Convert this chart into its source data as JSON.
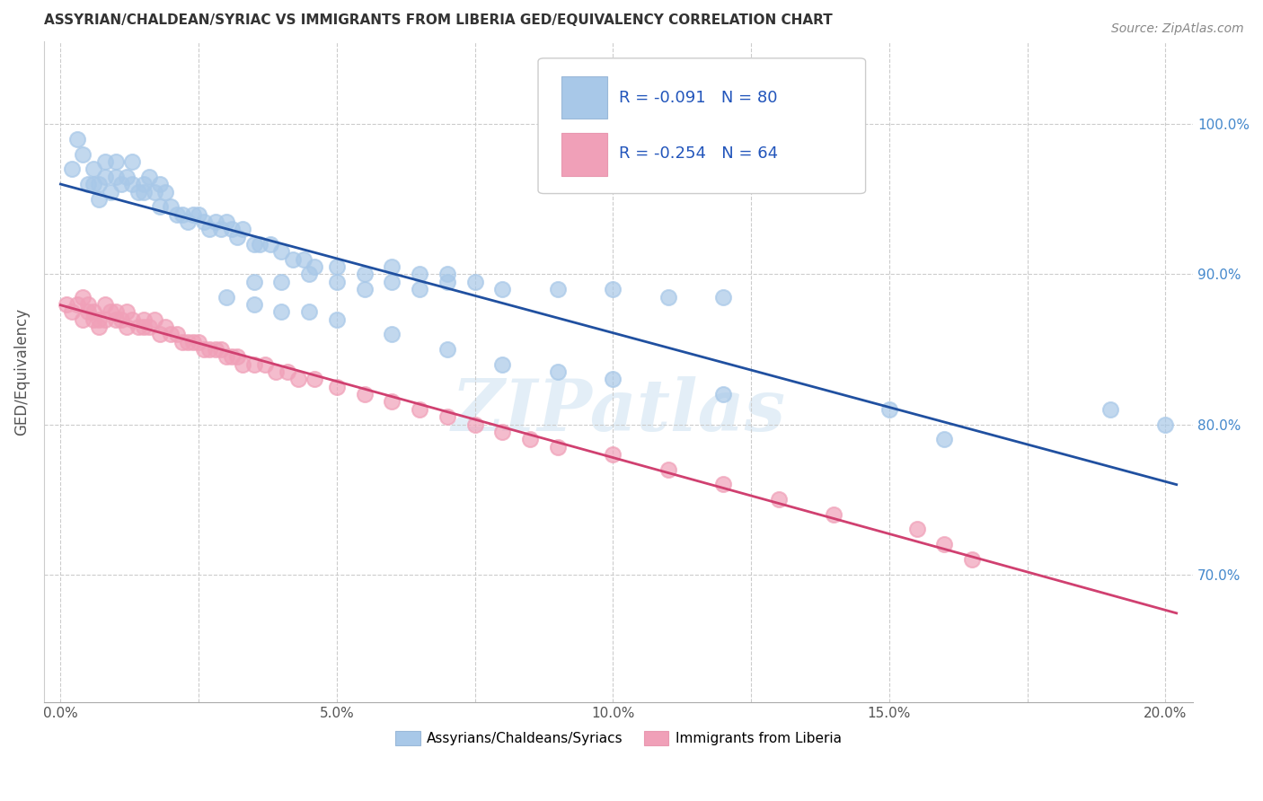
{
  "title": "ASSYRIAN/CHALDEAN/SYRIAC VS IMMIGRANTS FROM LIBERIA GED/EQUIVALENCY CORRELATION CHART",
  "source": "Source: ZipAtlas.com",
  "xlabel_ticks": [
    "0.0%",
    "5.0%",
    "10.0%",
    "15.0%",
    "20.0%"
  ],
  "xlabel_tick_vals": [
    0.0,
    0.05,
    0.1,
    0.15,
    0.2
  ],
  "ylabel_ticks": [
    "70.0%",
    "80.0%",
    "90.0%",
    "100.0%"
  ],
  "ylabel_tick_vals": [
    0.7,
    0.8,
    0.9,
    1.0
  ],
  "xlim": [
    -0.003,
    0.205
  ],
  "ylim": [
    0.615,
    1.055
  ],
  "ylabel": "GED/Equivalency",
  "legend_label1": "Assyrians/Chaldeans/Syriacs",
  "legend_label2": "Immigrants from Liberia",
  "R1": -0.091,
  "N1": 80,
  "R2": -0.254,
  "N2": 64,
  "color_blue": "#a8c8e8",
  "color_pink": "#f0a0b8",
  "line_color_blue": "#2050a0",
  "line_color_pink": "#d04070",
  "watermark": "ZIPatlas",
  "blue_x": [
    0.002,
    0.003,
    0.004,
    0.005,
    0.006,
    0.006,
    0.007,
    0.007,
    0.008,
    0.008,
    0.009,
    0.01,
    0.01,
    0.011,
    0.012,
    0.013,
    0.013,
    0.014,
    0.015,
    0.015,
    0.016,
    0.017,
    0.018,
    0.018,
    0.019,
    0.02,
    0.021,
    0.022,
    0.023,
    0.024,
    0.025,
    0.026,
    0.027,
    0.028,
    0.029,
    0.03,
    0.031,
    0.032,
    0.033,
    0.035,
    0.036,
    0.038,
    0.04,
    0.042,
    0.044,
    0.046,
    0.05,
    0.055,
    0.06,
    0.065,
    0.07,
    0.075,
    0.035,
    0.04,
    0.045,
    0.05,
    0.055,
    0.06,
    0.065,
    0.07,
    0.08,
    0.09,
    0.1,
    0.11,
    0.12,
    0.03,
    0.035,
    0.04,
    0.045,
    0.05,
    0.06,
    0.07,
    0.08,
    0.09,
    0.1,
    0.12,
    0.15,
    0.16,
    0.19,
    0.2
  ],
  "blue_y": [
    0.97,
    0.99,
    0.98,
    0.96,
    0.97,
    0.96,
    0.96,
    0.95,
    0.975,
    0.965,
    0.955,
    0.965,
    0.975,
    0.96,
    0.965,
    0.96,
    0.975,
    0.955,
    0.96,
    0.955,
    0.965,
    0.955,
    0.96,
    0.945,
    0.955,
    0.945,
    0.94,
    0.94,
    0.935,
    0.94,
    0.94,
    0.935,
    0.93,
    0.935,
    0.93,
    0.935,
    0.93,
    0.925,
    0.93,
    0.92,
    0.92,
    0.92,
    0.915,
    0.91,
    0.91,
    0.905,
    0.905,
    0.9,
    0.905,
    0.9,
    0.9,
    0.895,
    0.895,
    0.895,
    0.9,
    0.895,
    0.89,
    0.895,
    0.89,
    0.895,
    0.89,
    0.89,
    0.89,
    0.885,
    0.885,
    0.885,
    0.88,
    0.875,
    0.875,
    0.87,
    0.86,
    0.85,
    0.84,
    0.835,
    0.83,
    0.82,
    0.81,
    0.79,
    0.81,
    0.8
  ],
  "pink_x": [
    0.001,
    0.002,
    0.003,
    0.004,
    0.004,
    0.005,
    0.005,
    0.006,
    0.006,
    0.007,
    0.007,
    0.008,
    0.008,
    0.009,
    0.01,
    0.01,
    0.011,
    0.012,
    0.012,
    0.013,
    0.014,
    0.015,
    0.015,
    0.016,
    0.017,
    0.018,
    0.019,
    0.02,
    0.021,
    0.022,
    0.023,
    0.024,
    0.025,
    0.026,
    0.027,
    0.028,
    0.029,
    0.03,
    0.031,
    0.032,
    0.033,
    0.035,
    0.037,
    0.039,
    0.041,
    0.043,
    0.046,
    0.05,
    0.055,
    0.06,
    0.065,
    0.07,
    0.075,
    0.08,
    0.085,
    0.09,
    0.1,
    0.11,
    0.12,
    0.13,
    0.14,
    0.155,
    0.16,
    0.165
  ],
  "pink_y": [
    0.88,
    0.875,
    0.88,
    0.87,
    0.885,
    0.875,
    0.88,
    0.87,
    0.875,
    0.865,
    0.87,
    0.87,
    0.88,
    0.875,
    0.87,
    0.875,
    0.87,
    0.865,
    0.875,
    0.87,
    0.865,
    0.865,
    0.87,
    0.865,
    0.87,
    0.86,
    0.865,
    0.86,
    0.86,
    0.855,
    0.855,
    0.855,
    0.855,
    0.85,
    0.85,
    0.85,
    0.85,
    0.845,
    0.845,
    0.845,
    0.84,
    0.84,
    0.84,
    0.835,
    0.835,
    0.83,
    0.83,
    0.825,
    0.82,
    0.815,
    0.81,
    0.805,
    0.8,
    0.795,
    0.79,
    0.785,
    0.78,
    0.77,
    0.76,
    0.75,
    0.74,
    0.73,
    0.72,
    0.71
  ]
}
